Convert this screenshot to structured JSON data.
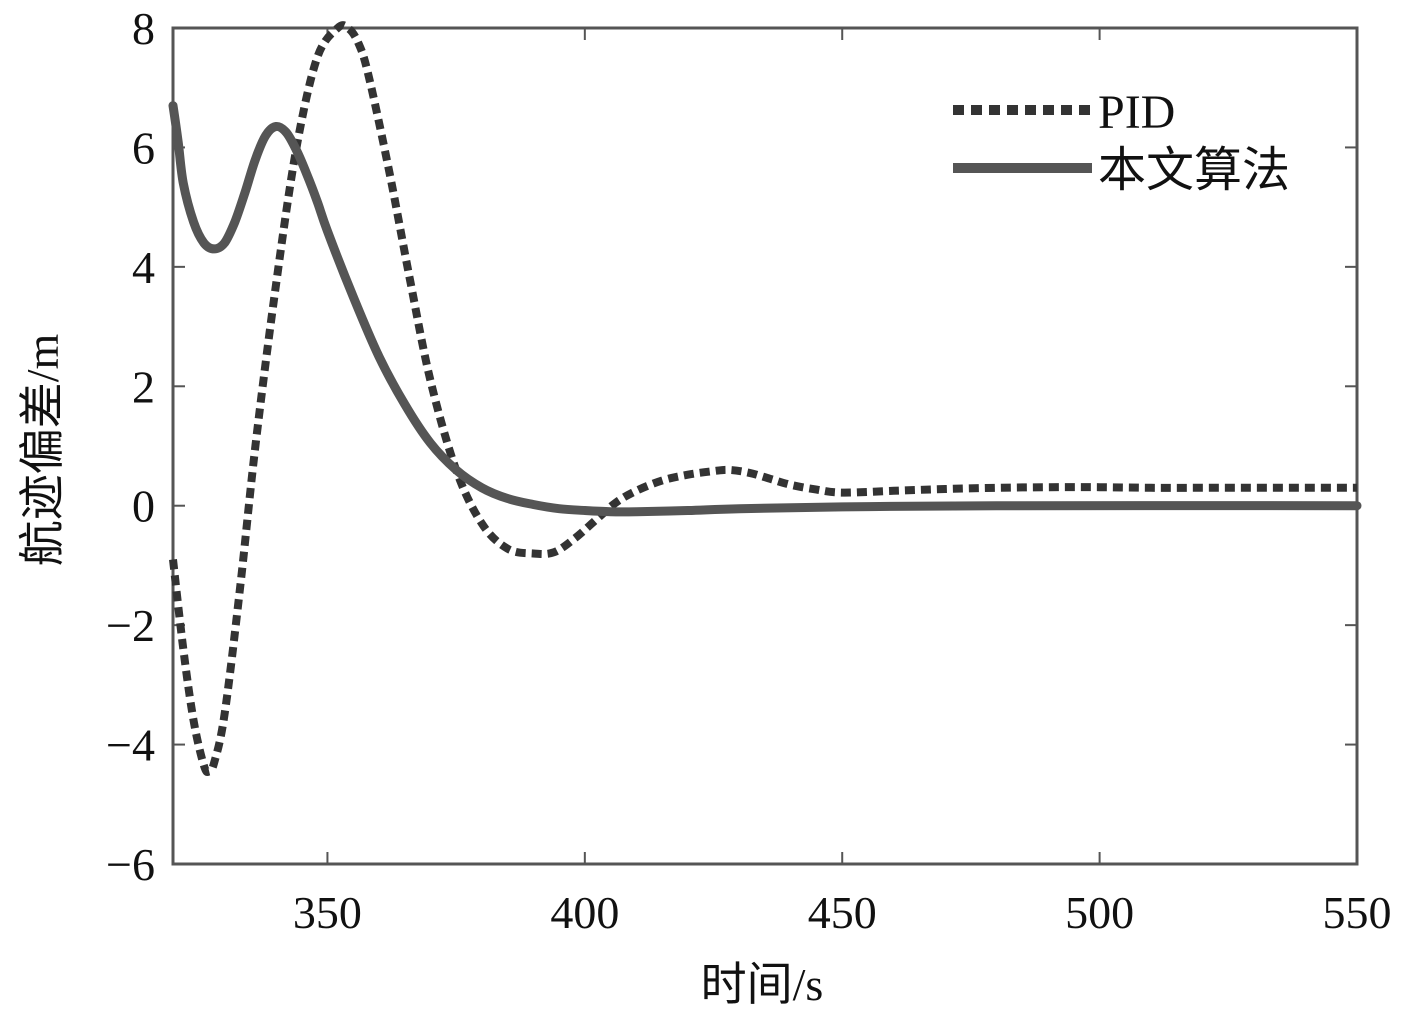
{
  "chart_data": {
    "type": "line",
    "title": "",
    "xlabel": "时间/s",
    "ylabel": "航迹偏差/m",
    "xlim": [
      320,
      550
    ],
    "ylim": [
      -6,
      8
    ],
    "xticks": [
      350,
      400,
      450,
      500,
      550
    ],
    "yticks": [
      -6,
      -4,
      -2,
      0,
      2,
      4,
      6,
      8
    ],
    "xtick_labels": [
      "350",
      "400",
      "450",
      "500",
      "550"
    ],
    "ytick_labels": [
      "−6",
      "−4",
      "−2",
      "0",
      "2",
      "4",
      "6",
      "8"
    ],
    "grid": false,
    "legend_position": "top-right",
    "series": [
      {
        "name": "PID",
        "style": "dotted",
        "color": "#333333",
        "x": [
          320,
          322,
          324,
          326,
          327,
          328,
          330,
          333,
          336,
          340,
          344,
          348,
          352,
          354,
          356,
          358,
          362,
          366,
          370,
          375,
          380,
          385,
          390,
          394,
          398,
          402,
          406,
          410,
          415,
          420,
          425,
          428,
          432,
          436,
          440,
          445,
          450,
          460,
          470,
          480,
          490,
          500,
          510,
          520,
          530,
          540,
          550
        ],
        "y": [
          -0.9,
          -2.4,
          -3.6,
          -4.35,
          -4.45,
          -4.3,
          -3.5,
          -1.4,
          1.0,
          3.7,
          6.0,
          7.5,
          8.0,
          8.0,
          7.75,
          7.2,
          5.6,
          3.8,
          2.1,
          0.6,
          -0.3,
          -0.72,
          -0.8,
          -0.78,
          -0.55,
          -0.25,
          0.05,
          0.25,
          0.42,
          0.52,
          0.58,
          0.6,
          0.55,
          0.45,
          0.35,
          0.27,
          0.22,
          0.25,
          0.28,
          0.3,
          0.31,
          0.31,
          0.3,
          0.3,
          0.3,
          0.3,
          0.3
        ]
      },
      {
        "name": "本文算法",
        "style": "solid",
        "color": "#555555",
        "x": [
          320,
          321,
          322,
          324,
          326,
          328,
          330,
          332,
          334,
          336,
          338,
          340,
          342,
          344,
          346,
          348,
          350,
          355,
          360,
          365,
          370,
          375,
          380,
          385,
          390,
          395,
          400,
          405,
          410,
          420,
          430,
          450,
          480,
          550
        ],
        "y": [
          6.7,
          6.1,
          5.4,
          4.75,
          4.4,
          4.3,
          4.4,
          4.75,
          5.25,
          5.8,
          6.2,
          6.35,
          6.25,
          5.95,
          5.55,
          5.1,
          4.6,
          3.5,
          2.5,
          1.7,
          1.05,
          0.6,
          0.3,
          0.12,
          0.02,
          -0.05,
          -0.08,
          -0.1,
          -0.1,
          -0.08,
          -0.05,
          -0.02,
          0.0,
          0.0
        ]
      }
    ]
  }
}
